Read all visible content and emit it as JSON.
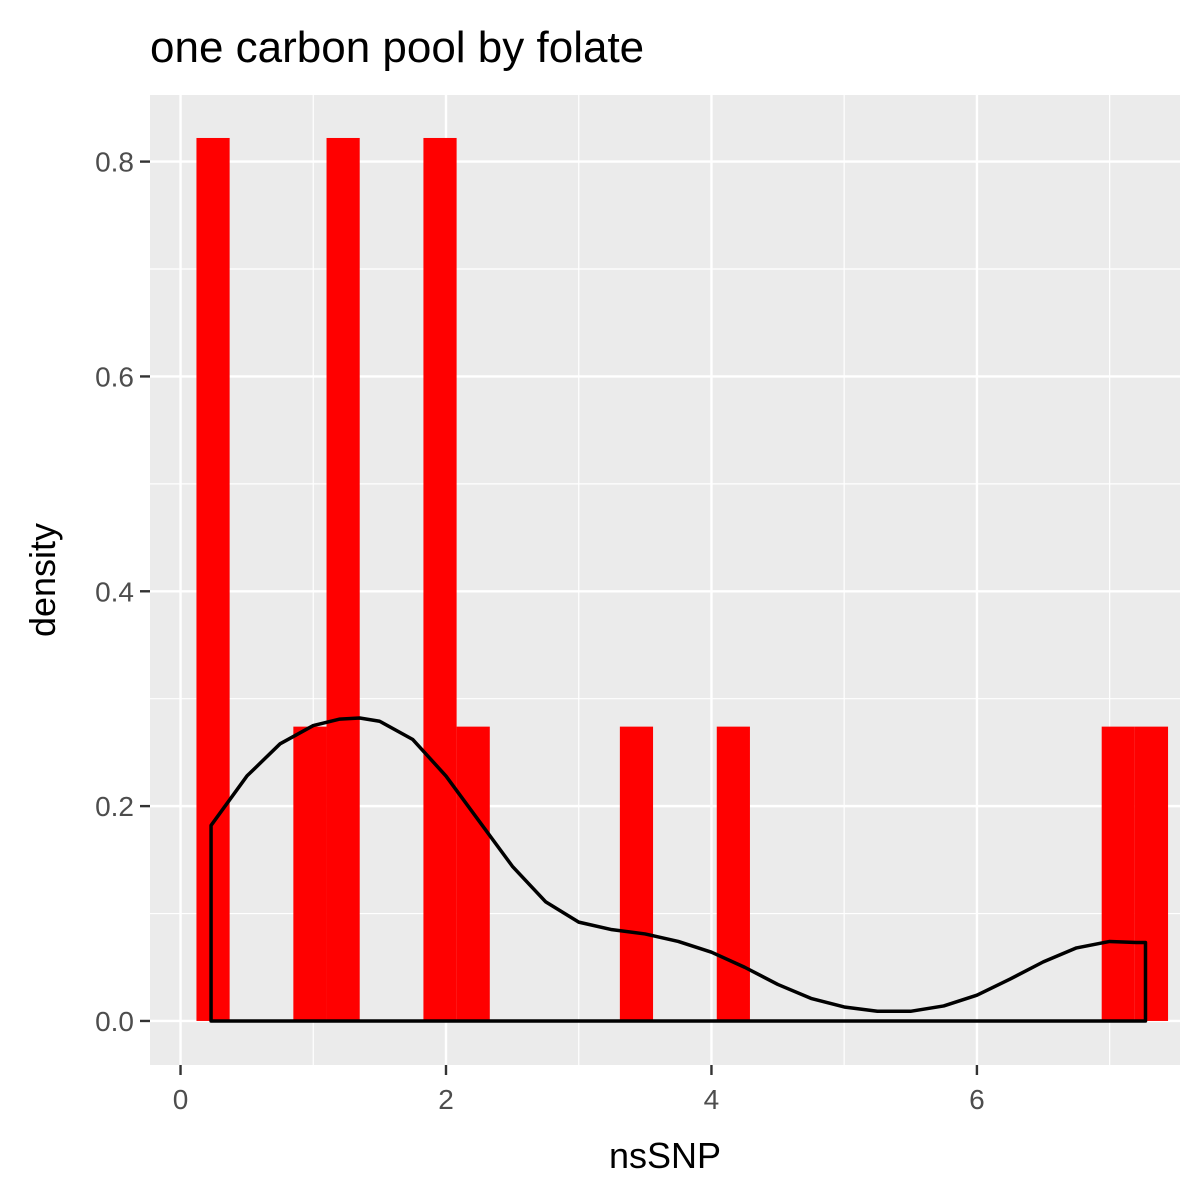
{
  "chart_data": {
    "type": "bar",
    "title": "one carbon pool by folate",
    "xlabel": "nsSNP",
    "ylabel": "density",
    "xlim": [
      -0.23,
      7.53
    ],
    "ylim": [
      -0.041,
      0.862
    ],
    "x_ticks": [
      0,
      2,
      4,
      6
    ],
    "x_tick_labels": [
      "0",
      "2",
      "4",
      "6"
    ],
    "y_ticks": [
      0.0,
      0.2,
      0.4,
      0.6,
      0.8
    ],
    "y_tick_labels": [
      "0.0",
      "0.2",
      "0.4",
      "0.6",
      "0.8"
    ],
    "grid": true,
    "legend": "none",
    "histogram": {
      "fill": "#ff0000",
      "bins": [
        {
          "x0": 0.12,
          "x1": 0.37,
          "density": 0.822
        },
        {
          "x0": 0.85,
          "x1": 1.1,
          "density": 0.274
        },
        {
          "x0": 1.1,
          "x1": 1.35,
          "density": 0.822
        },
        {
          "x0": 1.83,
          "x1": 2.08,
          "density": 0.822
        },
        {
          "x0": 2.08,
          "x1": 2.33,
          "density": 0.274
        },
        {
          "x0": 3.31,
          "x1": 3.56,
          "density": 0.274
        },
        {
          "x0": 4.04,
          "x1": 4.29,
          "density": 0.274
        },
        {
          "x0": 6.94,
          "x1": 7.19,
          "density": 0.274
        },
        {
          "x0": 7.19,
          "x1": 7.44,
          "density": 0.274
        }
      ]
    },
    "density_curve": {
      "color": "#000000",
      "x": [
        0.23,
        0.5,
        0.75,
        1.0,
        1.2,
        1.35,
        1.5,
        1.75,
        2.0,
        2.25,
        2.5,
        2.75,
        3.0,
        3.25,
        3.5,
        3.75,
        4.0,
        4.25,
        4.5,
        4.75,
        5.0,
        5.25,
        5.5,
        5.75,
        6.0,
        6.25,
        6.5,
        6.75,
        7.0,
        7.2,
        7.27
      ],
      "y": [
        0.182,
        0.228,
        0.258,
        0.275,
        0.281,
        0.282,
        0.279,
        0.262,
        0.228,
        0.186,
        0.144,
        0.111,
        0.092,
        0.085,
        0.081,
        0.074,
        0.064,
        0.05,
        0.034,
        0.021,
        0.013,
        0.009,
        0.009,
        0.014,
        0.024,
        0.039,
        0.055,
        0.068,
        0.074,
        0.073,
        0.073
      ]
    }
  }
}
